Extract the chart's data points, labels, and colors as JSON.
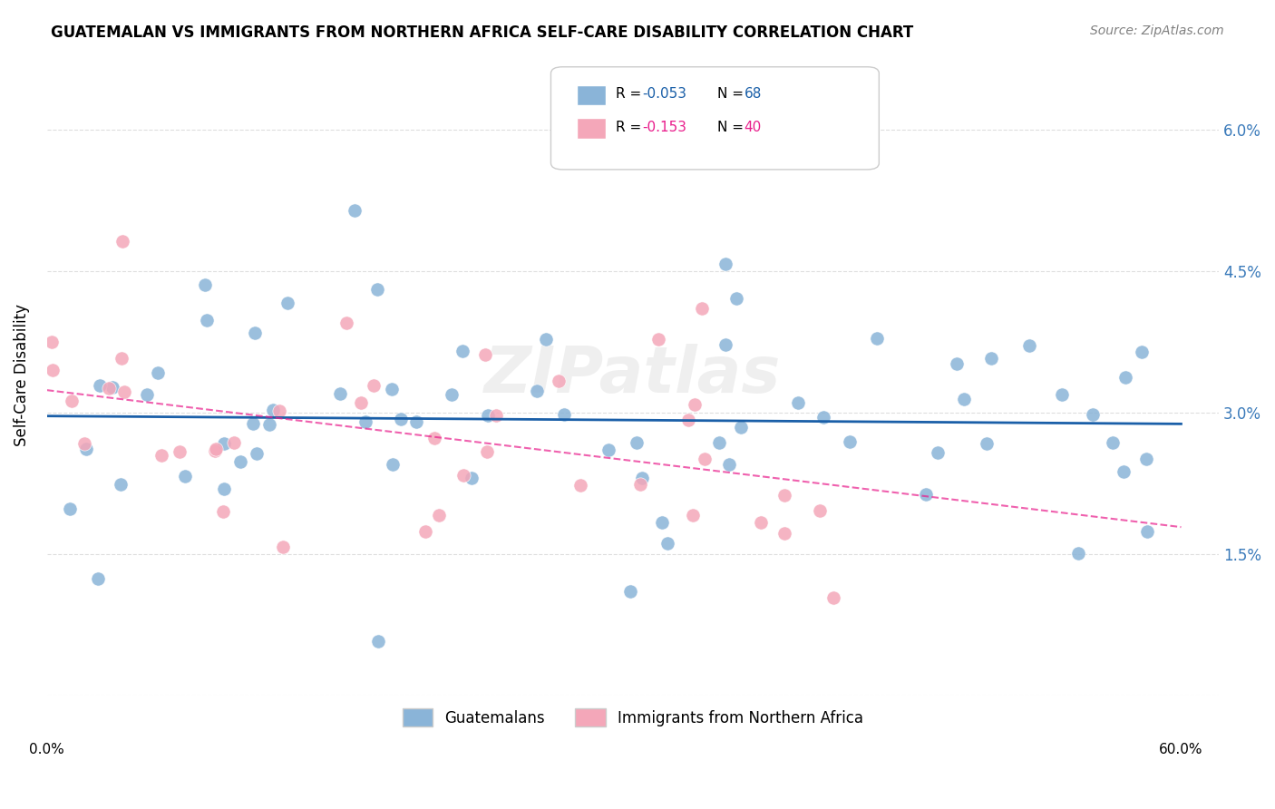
{
  "title": "GUATEMALAN VS IMMIGRANTS FROM NORTHERN AFRICA SELF-CARE DISABILITY CORRELATION CHART",
  "source": "Source: ZipAtlas.com",
  "ylabel": "Self-Care Disability",
  "ytick_vals": [
    0.0,
    0.015,
    0.03,
    0.045,
    0.06
  ],
  "ytick_labels": [
    "",
    "1.5%",
    "3.0%",
    "4.5%",
    "6.0%"
  ],
  "xlim": [
    0.0,
    0.62
  ],
  "ylim": [
    0.0,
    0.068
  ],
  "legend_r1": "-0.053",
  "legend_n1": "68",
  "legend_r2": "-0.153",
  "legend_n2": "40",
  "blue_color": "#8ab4d8",
  "pink_color": "#f4a7b9",
  "line_blue": "#1a5fa8",
  "line_pink": "#e91e8c",
  "watermark": "ZIPatlas",
  "tick_color": "#3a7aba",
  "grid_color": "#d0d0d0"
}
